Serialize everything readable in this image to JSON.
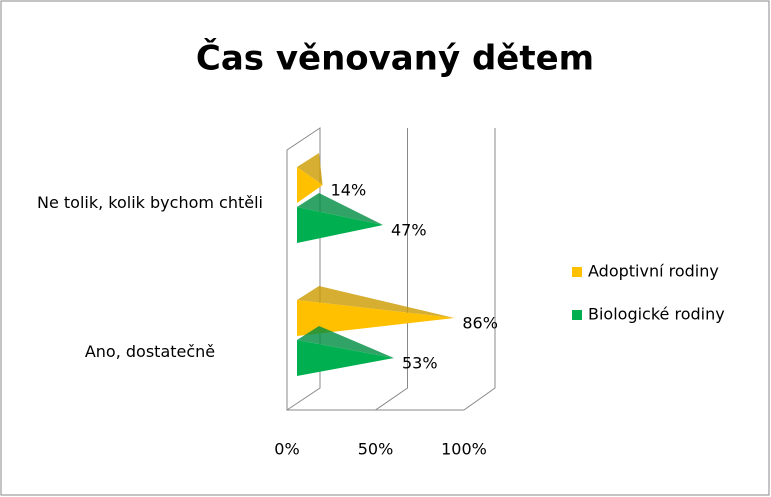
{
  "chart_data": {
    "type": "bar",
    "orientation": "horizontal",
    "title": "Čas věnovaný dětem",
    "categories": [
      "Ne tolik, kolik bychom chtěli",
      "Ano, dostatečně"
    ],
    "series": [
      {
        "name": "Adoptivní rodiny",
        "color": "#FFC000",
        "values": [
          14,
          86
        ],
        "value_labels": [
          "14%",
          "86%"
        ]
      },
      {
        "name": "Biologické rodiny",
        "color": "#00B050",
        "values": [
          47,
          53
        ],
        "value_labels": [
          "47%",
          "53%"
        ]
      }
    ],
    "xlim": [
      0,
      100
    ],
    "xticks": [
      {
        "value": 0,
        "label": "0%"
      },
      {
        "value": 50,
        "label": "50%"
      },
      {
        "value": 100,
        "label": "100%"
      }
    ],
    "grid": true,
    "legend": "right"
  }
}
